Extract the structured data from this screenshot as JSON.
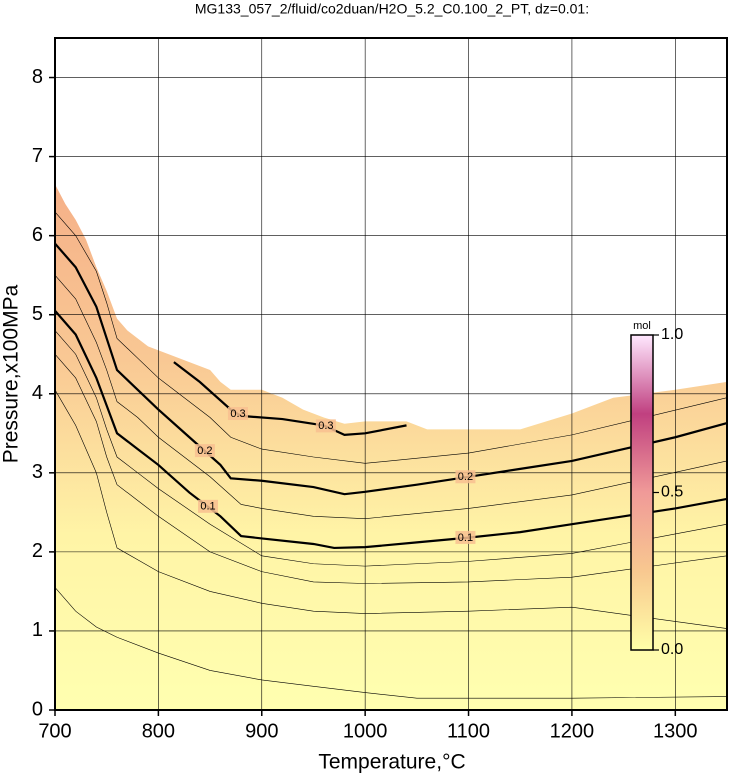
{
  "chart_data": {
    "type": "contour",
    "title": "MG133_057_2/fluid/co2duan/H2O_5.2_C0.100_2_PT, dz=0.01:",
    "x_label": "Temperature,°C",
    "y_label": "Pressure,x100MPa",
    "xlim": [
      700,
      1350
    ],
    "ylim": [
      0,
      8.5
    ],
    "xticks": [
      700,
      800,
      900,
      1000,
      1100,
      1200,
      1300
    ],
    "yticks": [
      0,
      1,
      2,
      3,
      4,
      5,
      6,
      7,
      8
    ],
    "grid": true,
    "boundary": {
      "x": [
        700,
        710,
        720,
        730,
        740,
        750,
        760,
        770,
        790,
        810,
        830,
        850,
        860,
        870,
        900,
        920,
        940,
        960,
        980,
        1000,
        1040,
        1060,
        1150,
        1200,
        1240,
        1300,
        1350
      ],
      "y": [
        6.65,
        6.4,
        6.2,
        5.95,
        5.6,
        5.3,
        4.95,
        4.8,
        4.6,
        4.5,
        4.4,
        4.3,
        4.15,
        4.05,
        4.05,
        3.95,
        3.8,
        3.7,
        3.62,
        3.65,
        3.65,
        3.55,
        3.55,
        3.75,
        3.95,
        4.05,
        4.15
      ],
      "colors": [
        "#ffffb0",
        "#fff4a6",
        "#f9c894",
        "#f5b088"
      ]
    },
    "contours": [
      {
        "level": 0.3,
        "x": [
          815,
          840,
          870,
          880,
          920,
          960,
          980,
          1000,
          1040
        ],
        "y": [
          4.4,
          4.15,
          3.8,
          3.72,
          3.68,
          3.6,
          3.48,
          3.5,
          3.6
        ]
      },
      {
        "level": 0.2,
        "x": [
          700,
          720,
          740,
          750,
          760,
          780,
          800,
          830,
          860,
          870,
          900,
          950,
          980,
          1000,
          1050,
          1100,
          1150,
          1200,
          1250,
          1300,
          1350
        ],
        "y": [
          5.9,
          5.6,
          5.1,
          4.7,
          4.3,
          4.05,
          3.8,
          3.45,
          3.1,
          2.93,
          2.9,
          2.82,
          2.73,
          2.76,
          2.85,
          2.95,
          3.05,
          3.15,
          3.3,
          3.45,
          3.63
        ]
      },
      {
        "level": 0.1,
        "x": [
          700,
          720,
          740,
          750,
          760,
          780,
          800,
          830,
          860,
          880,
          900,
          950,
          970,
          1000,
          1050,
          1100,
          1150,
          1200,
          1250,
          1300,
          1350
        ],
        "y": [
          5.05,
          4.75,
          4.2,
          3.85,
          3.5,
          3.3,
          3.1,
          2.75,
          2.45,
          2.2,
          2.17,
          2.1,
          2.05,
          2.06,
          2.12,
          2.18,
          2.25,
          2.35,
          2.45,
          2.55,
          2.67
        ]
      }
    ],
    "thin_contours": [
      {
        "x": [
          700,
          720,
          740,
          760,
          800,
          850,
          900,
          950,
          1000,
          1050,
          1100,
          1200,
          1350
        ],
        "y": [
          1.55,
          1.25,
          1.05,
          0.92,
          0.72,
          0.5,
          0.38,
          0.3,
          0.22,
          0.15,
          0.15,
          0.15,
          0.17
        ]
      },
      {
        "x": [
          700,
          720,
          740,
          750,
          760,
          780,
          800,
          850,
          900,
          950,
          1000,
          1100,
          1200,
          1350
        ],
        "y": [
          4.05,
          3.6,
          3.0,
          2.5,
          2.05,
          1.9,
          1.75,
          1.5,
          1.35,
          1.25,
          1.22,
          1.25,
          1.3,
          1.03
        ]
      },
      {
        "x": [
          700,
          720,
          740,
          750,
          760,
          780,
          800,
          850,
          900,
          950,
          1000,
          1100,
          1200,
          1350
        ],
        "y": [
          4.5,
          4.2,
          3.65,
          3.2,
          2.85,
          2.65,
          2.45,
          2.0,
          1.75,
          1.62,
          1.6,
          1.62,
          1.68,
          1.95
        ]
      },
      {
        "x": [
          700,
          720,
          740,
          750,
          760,
          780,
          800,
          850,
          900,
          950,
          1000,
          1100,
          1200,
          1350
        ],
        "y": [
          4.8,
          4.5,
          3.95,
          3.55,
          3.2,
          3.0,
          2.8,
          2.35,
          1.95,
          1.85,
          1.82,
          1.88,
          1.98,
          2.35
        ]
      },
      {
        "x": [
          700,
          720,
          740,
          750,
          760,
          780,
          800,
          850,
          880,
          900,
          950,
          1000,
          1100,
          1200,
          1350
        ],
        "y": [
          5.5,
          5.2,
          4.65,
          4.3,
          3.9,
          3.7,
          3.45,
          2.95,
          2.6,
          2.55,
          2.45,
          2.42,
          2.55,
          2.72,
          3.15
        ]
      },
      {
        "x": [
          700,
          720,
          740,
          750,
          760,
          780,
          800,
          850,
          870,
          900,
          950,
          1000,
          1100,
          1200,
          1350
        ],
        "y": [
          6.3,
          6.0,
          5.55,
          5.15,
          4.7,
          4.45,
          4.2,
          3.7,
          3.45,
          3.3,
          3.2,
          3.12,
          3.25,
          3.48,
          3.95
        ]
      }
    ],
    "colorbar": {
      "label": "mol",
      "lim": [
        0,
        1
      ],
      "ticks": [
        {
          "value": 0,
          "label": "0.0"
        },
        {
          "value": 0.5,
          "label": "0.5"
        },
        {
          "value": 1,
          "label": "1.0"
        }
      ],
      "colors": [
        "#ffffa8",
        "#f8c890",
        "#f09a98",
        "#c04080",
        "#ffe8ff"
      ]
    }
  }
}
